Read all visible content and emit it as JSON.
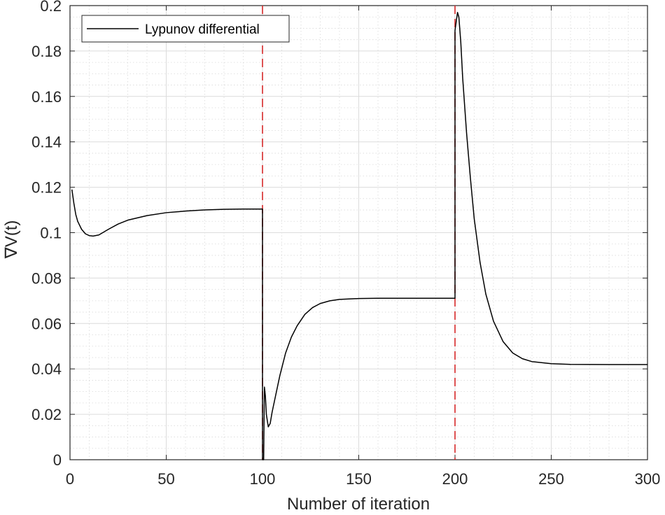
{
  "chart_data": {
    "type": "line",
    "title": "",
    "xlabel": "Number of iteration",
    "ylabel": "∇V(t)",
    "xlim": [
      0,
      300
    ],
    "ylim": [
      0,
      0.2
    ],
    "xticks": [
      0,
      50,
      100,
      150,
      200,
      250,
      300
    ],
    "xtick_labels": [
      "0",
      "50",
      "100",
      "150",
      "200",
      "250",
      "300"
    ],
    "yticks": [
      0,
      0.02,
      0.04,
      0.06,
      0.08,
      0.1,
      0.12,
      0.14,
      0.16,
      0.18,
      0.2
    ],
    "ytick_labels": [
      "0",
      "0.02",
      "0.04",
      "0.06",
      "0.08",
      "0.1",
      "0.12",
      "0.14",
      "0.16",
      "0.18",
      "0.2"
    ],
    "grid": true,
    "minor_grid": true,
    "legend_position": "top-left",
    "series": [
      {
        "name": "Lypunov differential",
        "color": "#000000",
        "points": [
          [
            1,
            0.119
          ],
          [
            2,
            0.113
          ],
          [
            3,
            0.108
          ],
          [
            4,
            0.105
          ],
          [
            6,
            0.1015
          ],
          [
            8,
            0.0995
          ],
          [
            10,
            0.0987
          ],
          [
            12,
            0.0985
          ],
          [
            15,
            0.099
          ],
          [
            20,
            0.1015
          ],
          [
            25,
            0.1038
          ],
          [
            30,
            0.1055
          ],
          [
            40,
            0.1075
          ],
          [
            50,
            0.1088
          ],
          [
            60,
            0.1095
          ],
          [
            70,
            0.11
          ],
          [
            80,
            0.1103
          ],
          [
            90,
            0.1104
          ],
          [
            100,
            0.1104
          ],
          [
            100,
            0.0
          ],
          [
            100.6,
            0.0
          ],
          [
            101,
            0.032
          ],
          [
            101.5,
            0.028
          ],
          [
            102,
            0.02
          ],
          [
            103,
            0.0145
          ],
          [
            104,
            0.016
          ],
          [
            105,
            0.021
          ],
          [
            107,
            0.029
          ],
          [
            109,
            0.037
          ],
          [
            112,
            0.047
          ],
          [
            115,
            0.054
          ],
          [
            118,
            0.059
          ],
          [
            122,
            0.064
          ],
          [
            126,
            0.067
          ],
          [
            130,
            0.0688
          ],
          [
            135,
            0.07
          ],
          [
            140,
            0.0706
          ],
          [
            150,
            0.071
          ],
          [
            160,
            0.0711
          ],
          [
            180,
            0.0711
          ],
          [
            200,
            0.0711
          ],
          [
            200,
            0.189
          ],
          [
            200.8,
            0.194
          ],
          [
            201.3,
            0.197
          ],
          [
            202,
            0.195
          ],
          [
            203,
            0.184
          ],
          [
            204,
            0.168
          ],
          [
            206,
            0.144
          ],
          [
            208,
            0.124
          ],
          [
            210,
            0.106
          ],
          [
            213,
            0.087
          ],
          [
            216,
            0.073
          ],
          [
            220,
            0.061
          ],
          [
            225,
            0.052
          ],
          [
            230,
            0.047
          ],
          [
            235,
            0.0445
          ],
          [
            240,
            0.0432
          ],
          [
            250,
            0.0423
          ],
          [
            260,
            0.042
          ],
          [
            280,
            0.0419
          ],
          [
            300,
            0.0419
          ]
        ]
      }
    ],
    "vertical_lines": [
      {
        "x": 100,
        "color": "#d62728",
        "style": "dashed"
      },
      {
        "x": 200,
        "color": "#d62728",
        "style": "dashed"
      }
    ]
  }
}
